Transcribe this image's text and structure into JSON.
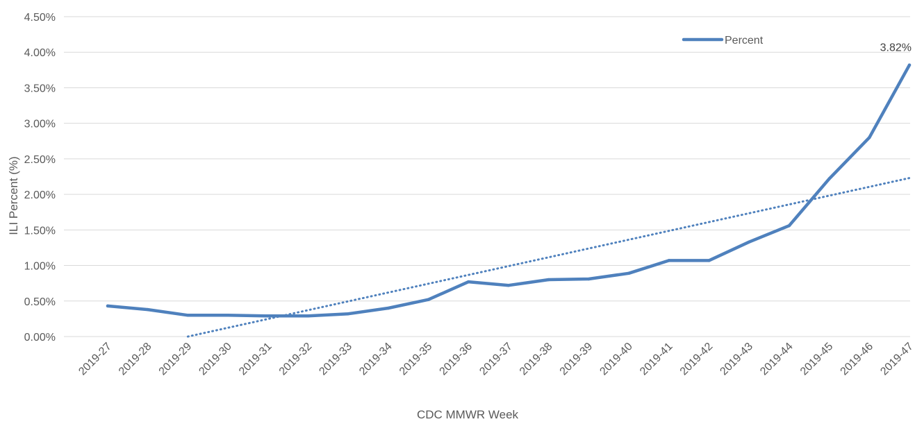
{
  "chart_data": {
    "type": "line",
    "title": "",
    "xlabel": "CDC MMWR Week",
    "ylabel": "ILI Percent (%)",
    "ylim": [
      0,
      4.5
    ],
    "yticks": [
      "0.00%",
      "0.50%",
      "1.00%",
      "1.50%",
      "2.00%",
      "2.50%",
      "3.00%",
      "3.50%",
      "4.00%",
      "4.50%"
    ],
    "grid": "horizontal",
    "legend_position": "top-right",
    "categories": [
      "2019-27",
      "2019-28",
      "2019-29",
      "2019-30",
      "2019-31",
      "2019-32",
      "2019-33",
      "2019-34",
      "2019-35",
      "2019-36",
      "2019-37",
      "2019-38",
      "2019-39",
      "2019-40",
      "2019-41",
      "2019-42",
      "2019-43",
      "2019-44",
      "2019-45",
      "2019-46",
      "2019-47"
    ],
    "series": [
      {
        "name": "Percent",
        "color": "#4f81bd",
        "values": [
          0.43,
          0.38,
          0.3,
          0.3,
          0.29,
          0.29,
          0.32,
          0.4,
          0.52,
          0.77,
          0.72,
          0.8,
          0.81,
          0.89,
          1.07,
          1.07,
          1.33,
          1.56,
          2.22,
          2.8,
          3.82
        ]
      }
    ],
    "trendline": {
      "type": "linear",
      "style": "dotted",
      "color": "#4f81bd",
      "start": [
        2,
        0.0
      ],
      "end": [
        20,
        2.23
      ]
    },
    "annotations": [
      {
        "category": "2019-47",
        "value": 3.82,
        "label": "3.82%"
      }
    ]
  }
}
